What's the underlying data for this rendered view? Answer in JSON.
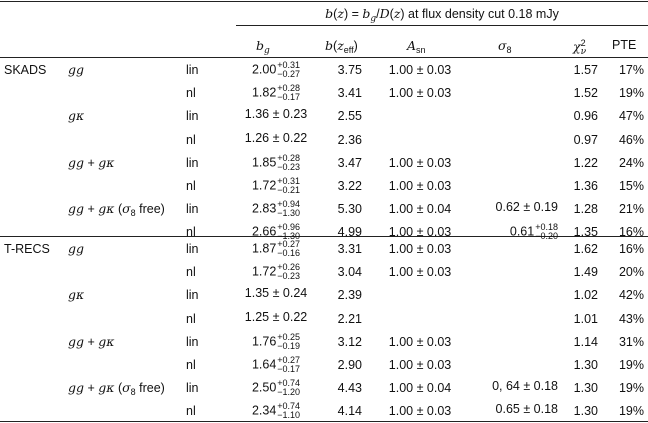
{
  "header": {
    "span_title": "b(z) = b_g/D(z) at flux density cut 0.18 mJy",
    "cols": [
      "b_g",
      "b(z_eff)",
      "A_sn",
      "σ_8",
      "χ²_ν",
      "PTE"
    ]
  },
  "groups": [
    {
      "name": "SKADS",
      "rows": [
        {
          "model": "gg",
          "fit": "lin",
          "bg_c": "2.00",
          "bg_up": "+0.31",
          "bg_dn": "−0.27",
          "bz": "3.75",
          "asn": "1.00 ± 0.03",
          "s8": "",
          "chi": "1.57",
          "pte": "17%"
        },
        {
          "model": "",
          "fit": "nl",
          "bg_c": "1.82",
          "bg_up": "+0.28",
          "bg_dn": "−0.17",
          "bz": "3.41",
          "asn": "1.00 ± 0.03",
          "s8": "",
          "chi": "1.52",
          "pte": "19%"
        },
        {
          "model": "gκ",
          "fit": "lin",
          "bg": "1.36 ± 0.23",
          "bz": "2.55",
          "asn": "",
          "s8": "",
          "chi": "0.96",
          "pte": "47%"
        },
        {
          "model": "",
          "fit": "nl",
          "bg": "1.26 ± 0.22",
          "bz": "2.36",
          "asn": "",
          "s8": "",
          "chi": "0.97",
          "pte": "46%"
        },
        {
          "model": "gg + gκ",
          "fit": "lin",
          "bg_c": "1.85",
          "bg_up": "+0.28",
          "bg_dn": "−0.23",
          "bz": "3.47",
          "asn": "1.00 ± 0.03",
          "s8": "",
          "chi": "1.22",
          "pte": "24%"
        },
        {
          "model": "",
          "fit": "nl",
          "bg_c": "1.72",
          "bg_up": "+0.31",
          "bg_dn": "−0.21",
          "bz": "3.22",
          "asn": "1.00 ± 0.03",
          "s8": "",
          "chi": "1.36",
          "pte": "15%"
        },
        {
          "model": "gg + gκ (σ8 free)",
          "fit": "lin",
          "bg_c": "2.83",
          "bg_up": "+0.94",
          "bg_dn": "−1.30",
          "bz": "5.30",
          "asn": "1.00 ± 0.04",
          "s8": "0.62 ± 0.19",
          "chi": "1.28",
          "pte": "21%"
        },
        {
          "model": "",
          "fit": "nl",
          "bg_c": "2.66",
          "bg_up": "+0.96",
          "bg_dn": "−1.30",
          "bz": "4.99",
          "asn": "1.00 ± 0.03",
          "s8_c": "0.61",
          "s8_up": "+0.18",
          "s8_dn": "−0.20",
          "chi": "1.35",
          "pte": "16%"
        }
      ]
    },
    {
      "name": "T-RECS",
      "rows": [
        {
          "model": "gg",
          "fit": "lin",
          "bg_c": "1.87",
          "bg_up": "+0.27",
          "bg_dn": "−0.16",
          "bz": "3.31",
          "asn": "1.00 ± 0.03",
          "s8": "",
          "chi": "1.62",
          "pte": "16%"
        },
        {
          "model": "",
          "fit": "nl",
          "bg_c": "1.72",
          "bg_up": "+0.26",
          "bg_dn": "−0.23",
          "bz": "3.04",
          "asn": "1.00 ± 0.03",
          "s8": "",
          "chi": "1.49",
          "pte": "20%"
        },
        {
          "model": "gκ",
          "fit": "lin",
          "bg": "1.35 ± 0.24",
          "bz": "2.39",
          "asn": "",
          "s8": "",
          "chi": "1.02",
          "pte": "42%"
        },
        {
          "model": "",
          "fit": "nl",
          "bg": "1.25 ± 0.22",
          "bz": "2.21",
          "asn": "",
          "s8": "",
          "chi": "1.01",
          "pte": "43%"
        },
        {
          "model": "gg + gκ",
          "fit": "lin",
          "bg_c": "1.76",
          "bg_up": "+0.25",
          "bg_dn": "−0.19",
          "bz": "3.12",
          "asn": "1.00 ± 0.03",
          "s8": "",
          "chi": "1.14",
          "pte": "31%"
        },
        {
          "model": "",
          "fit": "nl",
          "bg_c": "1.64",
          "bg_up": "+0.27",
          "bg_dn": "−0.17",
          "bz": "2.90",
          "asn": "1.00 ± 0.03",
          "s8": "",
          "chi": "1.30",
          "pte": "19%"
        },
        {
          "model": "gg + gκ (σ8 free)",
          "fit": "lin",
          "bg_c": "2.50",
          "bg_up": "+0.74",
          "bg_dn": "−1.20",
          "bz": "4.43",
          "asn": "1.00 ± 0.04",
          "s8": "0, 64 ± 0.18",
          "chi": "1.30",
          "pte": "19%"
        },
        {
          "model": "",
          "fit": "nl",
          "bg_c": "2.34",
          "bg_up": "+0.74",
          "bg_dn": "−1.10",
          "bz": "4.14",
          "asn": "1.00 ± 0.03",
          "s8": "0.65 ± 0.18",
          "chi": "1.30",
          "pte": "19%"
        }
      ]
    }
  ]
}
